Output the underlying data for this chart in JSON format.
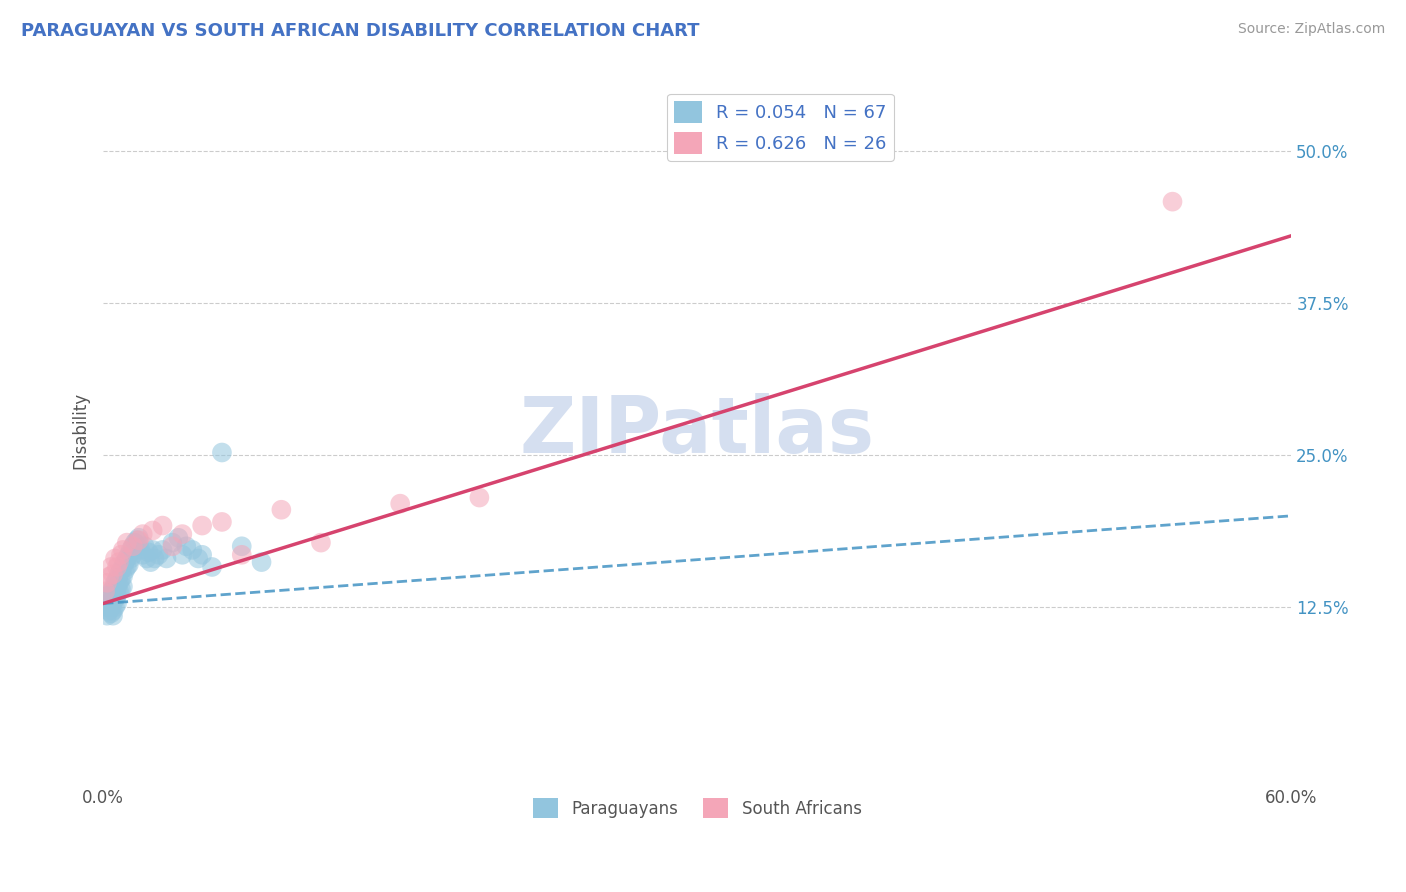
{
  "title": "PARAGUAYAN VS SOUTH AFRICAN DISABILITY CORRELATION CHART",
  "source": "Source: ZipAtlas.com",
  "ylabel": "Disability",
  "xlim": [
    0.0,
    0.6
  ],
  "ylim": [
    -0.02,
    0.56
  ],
  "yticks": [
    0.125,
    0.25,
    0.375,
    0.5
  ],
  "ytick_labels": [
    "12.5%",
    "25.0%",
    "37.5%",
    "50.0%"
  ],
  "xtick_positions": [
    0.0,
    0.6
  ],
  "xtick_labels": [
    "0.0%",
    "60.0%"
  ],
  "blue_color": "#92c5de",
  "pink_color": "#f4a6b8",
  "blue_line_color": "#4393c3",
  "pink_line_color": "#d6436e",
  "watermark": "ZIPatlas",
  "watermark_color": "#d5dff0",
  "background_color": "#ffffff",
  "blue_line_x0": 0.0,
  "blue_line_y0": 0.128,
  "blue_line_x1": 0.6,
  "blue_line_y1": 0.2,
  "pink_line_x0": 0.0,
  "pink_line_y0": 0.128,
  "pink_line_x1": 0.6,
  "pink_line_y1": 0.43,
  "par_x": [
    0.001,
    0.002,
    0.002,
    0.003,
    0.003,
    0.003,
    0.004,
    0.004,
    0.004,
    0.004,
    0.005,
    0.005,
    0.005,
    0.005,
    0.005,
    0.006,
    0.006,
    0.006,
    0.006,
    0.007,
    0.007,
    0.007,
    0.007,
    0.008,
    0.008,
    0.008,
    0.009,
    0.009,
    0.009,
    0.01,
    0.01,
    0.01,
    0.011,
    0.011,
    0.012,
    0.012,
    0.013,
    0.013,
    0.014,
    0.014,
    0.015,
    0.015,
    0.016,
    0.017,
    0.018,
    0.019,
    0.02,
    0.021,
    0.022,
    0.023,
    0.024,
    0.025,
    0.026,
    0.028,
    0.03,
    0.032,
    0.035,
    0.038,
    0.04,
    0.042,
    0.045,
    0.048,
    0.05,
    0.055,
    0.06,
    0.07,
    0.08
  ],
  "par_y": [
    0.13,
    0.118,
    0.125,
    0.135,
    0.128,
    0.122,
    0.138,
    0.13,
    0.125,
    0.12,
    0.14,
    0.132,
    0.128,
    0.122,
    0.118,
    0.145,
    0.138,
    0.132,
    0.125,
    0.148,
    0.14,
    0.135,
    0.128,
    0.152,
    0.145,
    0.138,
    0.155,
    0.148,
    0.14,
    0.158,
    0.15,
    0.142,
    0.162,
    0.155,
    0.165,
    0.158,
    0.168,
    0.16,
    0.172,
    0.165,
    0.175,
    0.168,
    0.178,
    0.18,
    0.182,
    0.172,
    0.168,
    0.175,
    0.165,
    0.17,
    0.162,
    0.172,
    0.165,
    0.168,
    0.172,
    0.165,
    0.178,
    0.182,
    0.168,
    0.175,
    0.172,
    0.165,
    0.168,
    0.158,
    0.252,
    0.175,
    0.162
  ],
  "sa_x": [
    0.001,
    0.002,
    0.003,
    0.004,
    0.005,
    0.006,
    0.007,
    0.008,
    0.009,
    0.01,
    0.012,
    0.015,
    0.018,
    0.02,
    0.025,
    0.03,
    0.035,
    0.04,
    0.05,
    0.06,
    0.07,
    0.09,
    0.11,
    0.15,
    0.19,
    0.54
  ],
  "sa_y": [
    0.138,
    0.145,
    0.15,
    0.158,
    0.152,
    0.165,
    0.158,
    0.162,
    0.168,
    0.172,
    0.178,
    0.175,
    0.18,
    0.185,
    0.188,
    0.192,
    0.175,
    0.185,
    0.192,
    0.195,
    0.168,
    0.205,
    0.178,
    0.21,
    0.215,
    0.458
  ]
}
